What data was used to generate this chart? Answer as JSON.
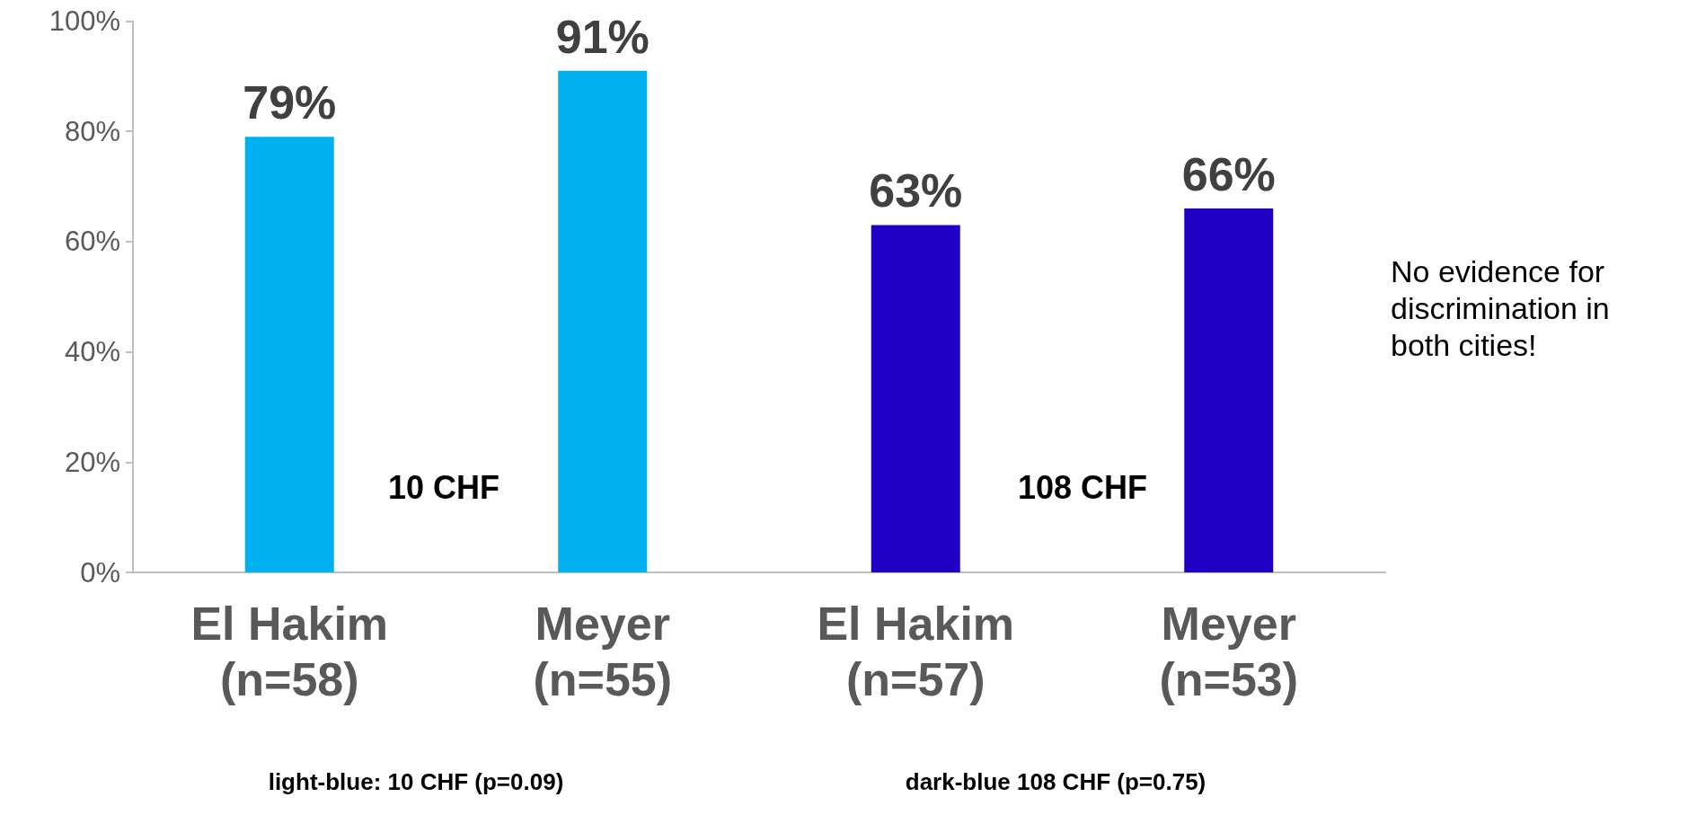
{
  "chart_data": {
    "type": "bar",
    "categories": [
      "El Hakim\n(n=58)",
      "Meyer\n(n=55)",
      "El Hakim\n(n=57)",
      "Meyer\n(n=53)"
    ],
    "values": [
      79,
      91,
      63,
      66
    ],
    "colors": [
      "#00b0f0",
      "#00b0f0",
      "#1f00c4",
      "#1f00c4"
    ],
    "value_labels": [
      "79%",
      "91%",
      "63%",
      "66%"
    ],
    "ylim": [
      0,
      100
    ],
    "yticks": [
      {
        "value": 0,
        "label": "0%"
      },
      {
        "value": 20,
        "label": "20%"
      },
      {
        "value": 40,
        "label": "40%"
      },
      {
        "value": 60,
        "label": "60%"
      },
      {
        "value": 80,
        "label": "80%"
      },
      {
        "value": 100,
        "label": "100%"
      }
    ],
    "grid": false,
    "annotations": [
      "10 CHF",
      "108 CHF",
      "No evidence for discrimination in both cities!",
      "light-blue: 10 CHF (p=0.09)",
      "dark-blue 108 CHF (p=0.75)"
    ]
  }
}
